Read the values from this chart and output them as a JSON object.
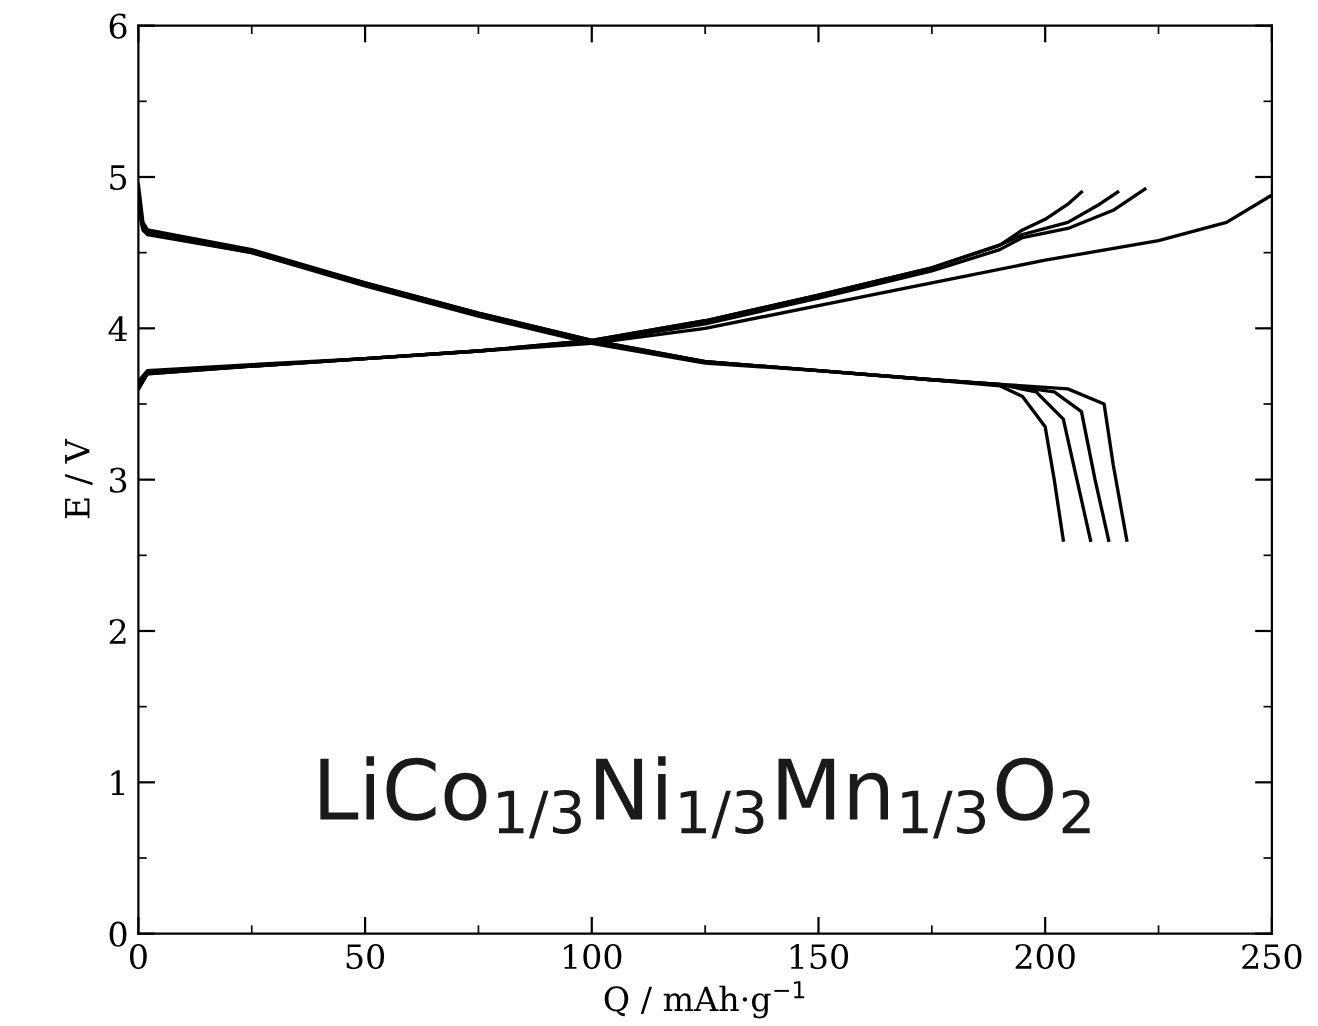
{
  "chart_data": {
    "type": "line",
    "xlabel": "Q / mAh·g$^{−1}$",
    "ylabel": "E / V",
    "annotations": [
      "LiCo$_{1/3}$Ni$_{1/3}$Mn$_{1/3}$O$_{2}$"
    ],
    "xlim": [
      0,
      250
    ],
    "ylim": [
      0,
      6
    ],
    "xticks": [
      0,
      50,
      100,
      150,
      200,
      250
    ],
    "yticks": [
      0,
      1,
      2,
      3,
      4,
      5,
      6
    ],
    "grid": false,
    "legend": false,
    "marker": "none",
    "line_style": "solid",
    "series": [
      {
        "color": "#000000",
        "x": [
          0,
          2,
          25,
          50,
          75,
          100,
          125,
          150,
          175,
          190,
          195,
          200,
          205,
          208
        ],
        "values": [
          3.6,
          3.7,
          3.75,
          3.8,
          3.85,
          3.92,
          4.05,
          4.22,
          4.4,
          4.55,
          4.65,
          4.72,
          4.82,
          4.9
        ]
      },
      {
        "color": "#000000",
        "x": [
          0,
          2,
          25,
          50,
          75,
          100,
          125,
          150,
          175,
          190,
          195,
          205,
          212,
          216
        ],
        "values": [
          3.6,
          3.7,
          3.75,
          3.8,
          3.85,
          3.92,
          4.05,
          4.22,
          4.4,
          4.55,
          4.62,
          4.7,
          4.82,
          4.9
        ]
      },
      {
        "color": "#000000",
        "x": [
          0,
          2,
          25,
          50,
          75,
          100,
          125,
          150,
          175,
          190,
          195,
          205,
          215,
          222
        ],
        "values": [
          3.62,
          3.71,
          3.75,
          3.8,
          3.85,
          3.91,
          4.03,
          4.2,
          4.38,
          4.52,
          4.6,
          4.66,
          4.78,
          4.92
        ]
      },
      {
        "color": "#000000",
        "x": [
          0,
          2,
          25,
          50,
          75,
          100,
          125,
          150,
          175,
          200,
          225,
          240,
          250
        ],
        "values": [
          3.65,
          3.72,
          3.76,
          3.8,
          3.85,
          3.9,
          4.0,
          4.15,
          4.3,
          4.45,
          4.58,
          4.7,
          4.88
        ]
      },
      {
        "color": "#000000",
        "x": [
          0,
          1,
          2,
          25,
          50,
          75,
          100,
          125,
          150,
          175,
          190,
          195,
          200,
          202,
          204
        ],
        "values": [
          4.95,
          4.7,
          4.65,
          4.52,
          4.3,
          4.1,
          3.92,
          3.78,
          3.72,
          3.66,
          3.62,
          3.55,
          3.35,
          3.0,
          2.6
        ]
      },
      {
        "color": "#000000",
        "x": [
          0,
          1,
          2,
          25,
          50,
          75,
          100,
          125,
          150,
          175,
          190,
          198,
          204,
          207,
          210
        ],
        "values": [
          4.9,
          4.68,
          4.64,
          4.51,
          4.3,
          4.1,
          3.92,
          3.78,
          3.72,
          3.66,
          3.63,
          3.58,
          3.4,
          3.0,
          2.6
        ]
      },
      {
        "color": "#000000",
        "x": [
          0,
          1,
          2,
          25,
          50,
          75,
          100,
          125,
          150,
          175,
          190,
          202,
          208,
          211,
          214
        ],
        "values": [
          4.85,
          4.66,
          4.63,
          4.5,
          4.29,
          4.09,
          3.91,
          3.78,
          3.72,
          3.66,
          3.63,
          3.58,
          3.45,
          3.0,
          2.6
        ]
      },
      {
        "color": "#000000",
        "x": [
          0,
          1,
          2,
          25,
          50,
          75,
          100,
          125,
          150,
          175,
          190,
          205,
          213,
          215,
          218
        ],
        "values": [
          4.8,
          4.65,
          4.62,
          4.5,
          4.28,
          4.08,
          3.9,
          3.77,
          3.72,
          3.66,
          3.63,
          3.6,
          3.5,
          3.1,
          2.6
        ]
      }
    ]
  }
}
